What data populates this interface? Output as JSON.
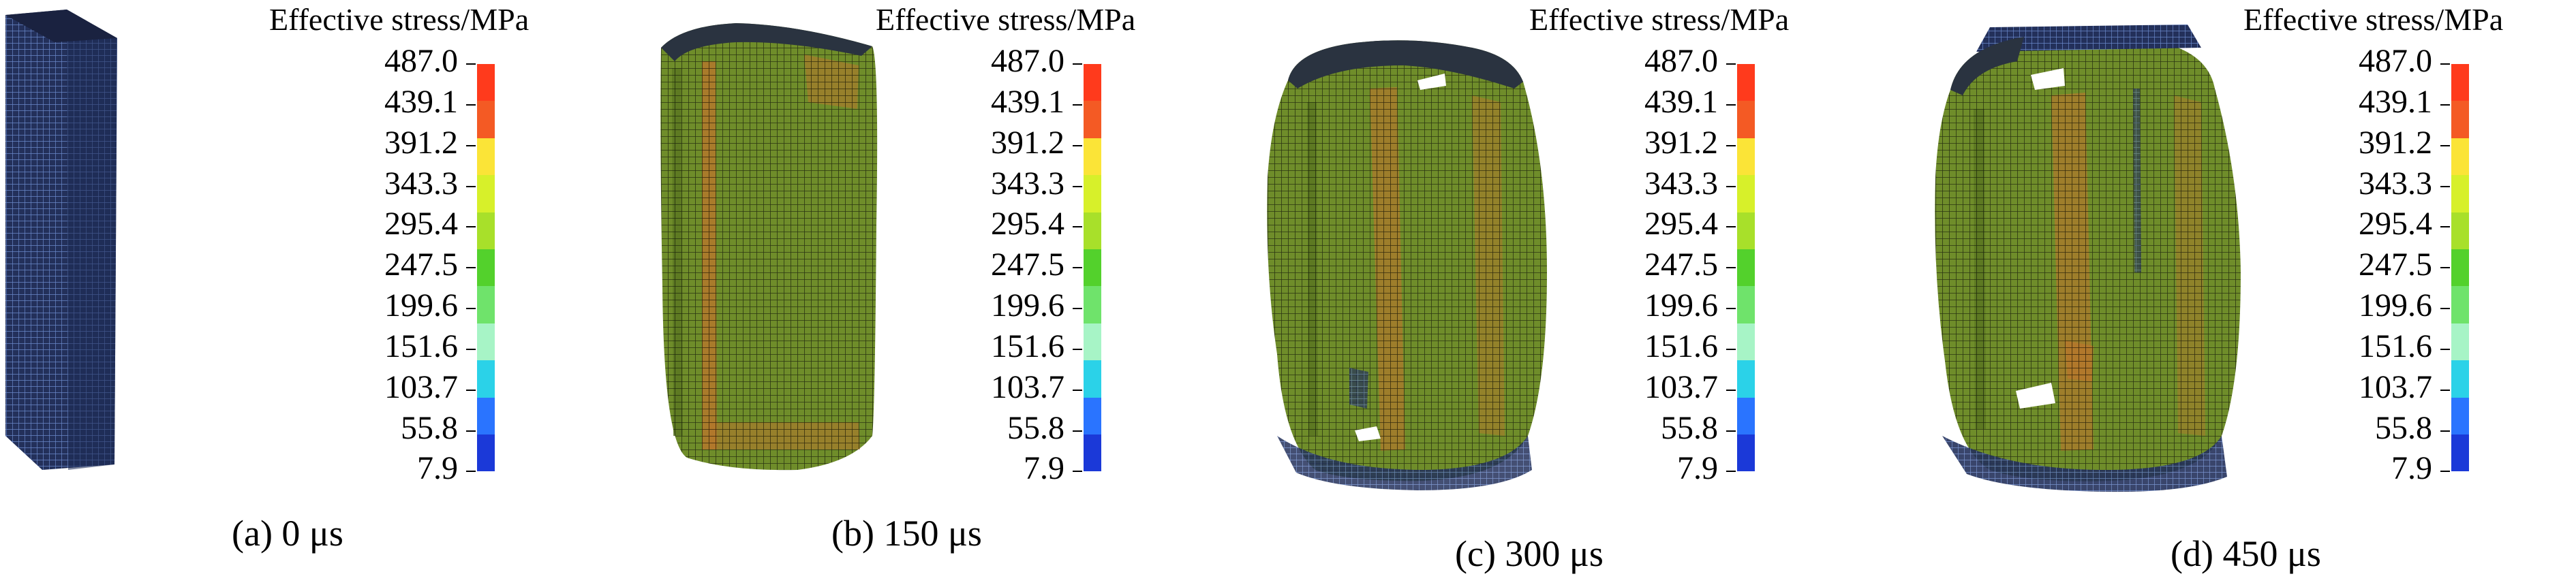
{
  "legend": {
    "title": "Effective stress/MPa",
    "ticks": [
      "487.0",
      "439.1",
      "391.2",
      "343.3",
      "295.4",
      "247.5",
      "199.6",
      "151.6",
      "103.7",
      "55.8",
      "7.9"
    ],
    "colors": [
      "#ff3a1c",
      "#f45a24",
      "#fbe437",
      "#d7f02a",
      "#a8e02a",
      "#53d12c",
      "#6fe36b",
      "#a7f4c6",
      "#2bd2e8",
      "#2a74ff",
      "#1b39d8"
    ]
  },
  "panels": [
    {
      "caption": "(a) 0 μs"
    },
    {
      "caption": "(b) 150 μs"
    },
    {
      "caption": "(c) 300 μs"
    },
    {
      "caption": "(d) 450 μs"
    }
  ]
}
